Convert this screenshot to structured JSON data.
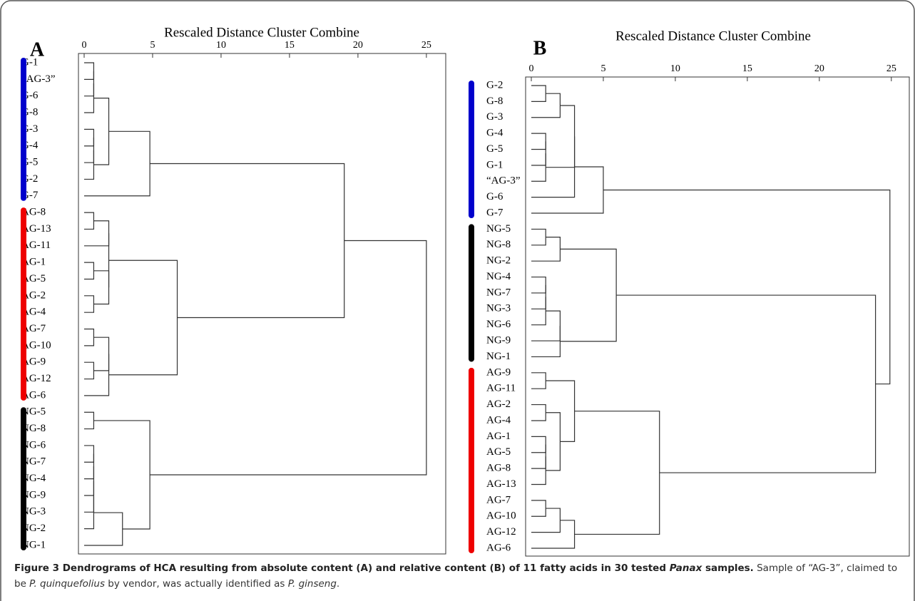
{
  "panels": [
    {
      "label": "A",
      "axis_title": "Rescaled Distance Cluster Combine",
      "xlim": [
        0,
        26.1
      ],
      "xticks": [
        0,
        5,
        10,
        15,
        20,
        25
      ],
      "leaves": [
        "G-1",
        "“AG-3”",
        "G-6",
        "G-8",
        "G-3",
        "G-4",
        "G-5",
        "G-2",
        "G-7",
        "AG-8",
        "AG-13",
        "AG-11",
        "AG-1",
        "AG-5",
        "AG-2",
        "AG-4",
        "AG-7",
        "AG-10",
        "AG-9",
        "AG-12",
        "AG-6",
        "NG-5",
        "NG-8",
        "NG-6",
        "NG-7",
        "NG-4",
        "NG-9",
        "NG-3",
        "NG-2",
        "NG-1"
      ],
      "merges": [
        [
          0,
          1,
          0.7
        ],
        [
          30,
          2,
          0.7
        ],
        [
          31,
          3,
          0.7
        ],
        [
          4,
          5,
          0.7
        ],
        [
          33,
          6,
          0.7
        ],
        [
          34,
          7,
          0.7
        ],
        [
          32,
          35,
          1.8
        ],
        [
          36,
          8,
          4.8
        ],
        [
          9,
          10,
          0.7
        ],
        [
          38,
          11,
          1.8
        ],
        [
          12,
          13,
          0.7
        ],
        [
          14,
          15,
          0.7
        ],
        [
          40,
          41,
          1.8
        ],
        [
          39,
          42,
          1.8
        ],
        [
          16,
          17,
          0.7
        ],
        [
          18,
          19,
          0.7
        ],
        [
          44,
          45,
          1.8
        ],
        [
          46,
          20,
          1.8
        ],
        [
          43,
          47,
          6.8
        ],
        [
          37,
          48,
          19
        ],
        [
          21,
          22,
          0.7
        ],
        [
          23,
          24,
          0.7
        ],
        [
          51,
          25,
          0.7
        ],
        [
          52,
          26,
          0.7
        ],
        [
          53,
          27,
          0.7
        ],
        [
          54,
          28,
          0.7
        ],
        [
          55,
          29,
          2.8
        ],
        [
          50,
          56,
          4.8
        ],
        [
          49,
          57,
          25
        ]
      ],
      "groups": [
        {
          "color": "#0000cc",
          "leaves": 9
        },
        {
          "color": "#ee0000",
          "leaves": 12
        },
        {
          "color": "#000000",
          "leaves": 9
        }
      ]
    },
    {
      "label": "B",
      "axis_title": "Rescaled Distance Cluster Combine",
      "xlim": [
        0,
        25.9
      ],
      "xticks": [
        0,
        5,
        10,
        15,
        20,
        25
      ],
      "leaves": [
        "G-2",
        "G-8",
        "G-3",
        "G-4",
        "G-5",
        "G-1",
        "“AG-3”",
        "G-6",
        "G-7",
        "NG-5",
        "NG-8",
        "NG-2",
        "NG-4",
        "NG-7",
        "NG-3",
        "NG-6",
        "NG-9",
        "NG-1",
        "AG-9",
        "AG-11",
        "AG-2",
        "AG-4",
        "AG-1",
        "AG-5",
        "AG-8",
        "AG-13",
        "AG-7",
        "AG-10",
        "AG-12",
        "AG-6"
      ],
      "merges": [
        [
          0,
          1,
          1
        ],
        [
          3,
          4,
          1
        ],
        [
          31,
          5,
          1
        ],
        [
          32,
          6,
          1
        ],
        [
          30,
          2,
          2
        ],
        [
          34,
          33,
          3
        ],
        [
          35,
          7,
          3
        ],
        [
          36,
          8,
          5
        ],
        [
          9,
          10,
          1
        ],
        [
          38,
          11,
          2
        ],
        [
          12,
          13,
          1
        ],
        [
          40,
          14,
          1
        ],
        [
          41,
          15,
          1
        ],
        [
          42,
          16,
          2
        ],
        [
          43,
          17,
          2
        ],
        [
          39,
          44,
          5.9
        ],
        [
          18,
          19,
          1
        ],
        [
          20,
          21,
          1
        ],
        [
          22,
          23,
          1
        ],
        [
          48,
          24,
          1
        ],
        [
          49,
          25,
          1
        ],
        [
          47,
          50,
          2
        ],
        [
          46,
          51,
          3
        ],
        [
          26,
          27,
          1
        ],
        [
          53,
          28,
          2
        ],
        [
          54,
          29,
          3
        ],
        [
          52,
          55,
          8.9
        ],
        [
          45,
          56,
          23.9
        ],
        [
          37,
          57,
          24.9
        ]
      ],
      "groups": [
        {
          "color": "#0000cc",
          "leaves": 9
        },
        {
          "color": "#000000",
          "leaves": 9
        },
        {
          "color": "#ee0000",
          "leaves": 12
        }
      ]
    }
  ],
  "caption": [
    {
      "text": "Figure 3 Dendrograms of HCA resulting from absolute content (A) and relative content (B) of 11 fatty acids in 30 tested ",
      "bold": true,
      "italic": false
    },
    {
      "text": "Panax",
      "bold": true,
      "italic": true
    },
    {
      "text": " samples.",
      "bold": true,
      "italic": false
    },
    {
      "text": " Sample of “AG-3”, claimed to be ",
      "bold": false,
      "italic": false
    },
    {
      "text": "P. quinquefolius",
      "bold": false,
      "italic": true
    },
    {
      "text": " by vendor, was actually identified as ",
      "bold": false,
      "italic": false
    },
    {
      "text": "P. ginseng",
      "bold": false,
      "italic": true
    },
    {
      "text": ".",
      "bold": false,
      "italic": false
    }
  ]
}
